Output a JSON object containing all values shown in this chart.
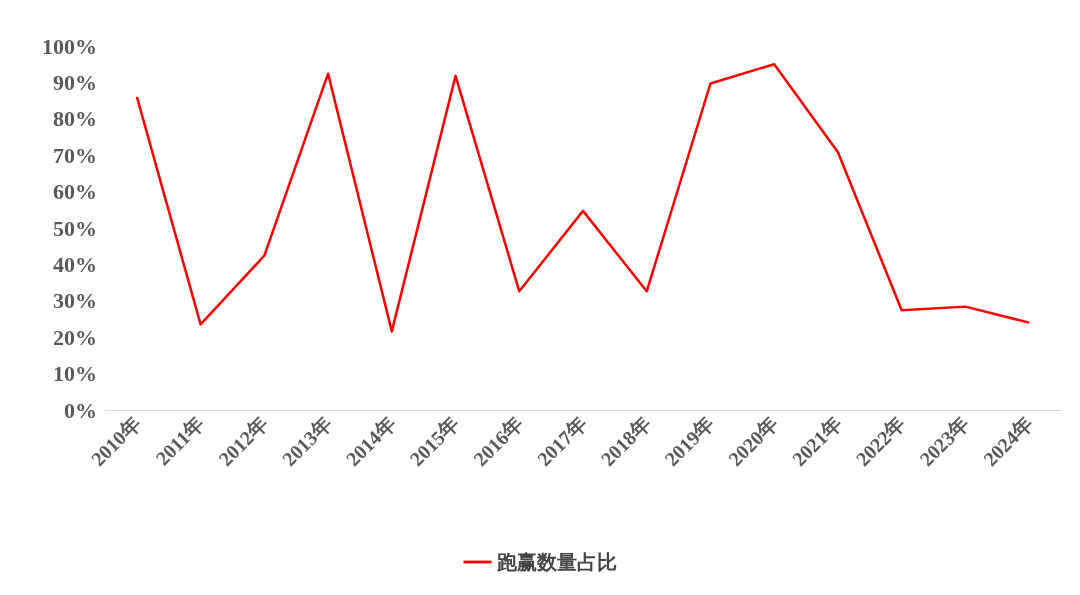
{
  "chart_data": {
    "type": "line",
    "categories": [
      "2010年",
      "2011年",
      "2012年",
      "2013年",
      "2014年",
      "2015年",
      "2016年",
      "2017年",
      "2018年",
      "2019年",
      "2020年",
      "2021年",
      "2022年",
      "2023年",
      "2024年"
    ],
    "series": [
      {
        "name": "跑赢数量占比",
        "color": "#ff0000",
        "values": [
          86,
          23.5,
          42.4,
          92.4,
          21.6,
          91.8,
          32.6,
          54.7,
          32.6,
          89.7,
          95,
          70.8,
          27.4,
          28.4,
          24
        ]
      }
    ],
    "ylim": [
      0,
      100
    ],
    "yticks": [
      {
        "value": 0,
        "label": "0%"
      },
      {
        "value": 10,
        "label": "10%"
      },
      {
        "value": 20,
        "label": "20%"
      },
      {
        "value": 30,
        "label": "30%"
      },
      {
        "value": 40,
        "label": "40%"
      },
      {
        "value": 50,
        "label": "50%"
      },
      {
        "value": 60,
        "label": "60%"
      },
      {
        "value": 70,
        "label": "70%"
      },
      {
        "value": 80,
        "label": "80%"
      },
      {
        "value": 90,
        "label": "90%"
      },
      {
        "value": 100,
        "label": "100%"
      }
    ],
    "grid": false,
    "legend": "bottom",
    "marker": "none",
    "line_style": "solid"
  }
}
